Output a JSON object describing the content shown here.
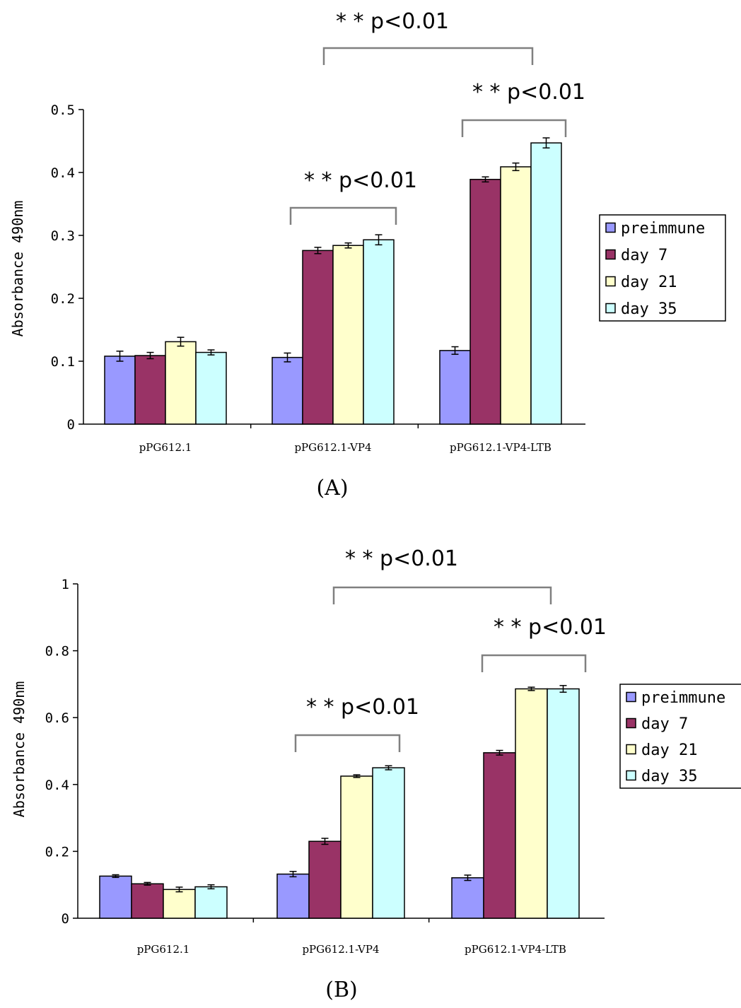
{
  "colors": {
    "series": [
      "#9999ff",
      "#993366",
      "#ffffcc",
      "#ccffff"
    ],
    "stroke": "#000000",
    "bracket": "#808080"
  },
  "chart_data": [
    {
      "type": "bar",
      "panel_label": "(A)",
      "categories": [
        "pPG612.1",
        "pPG612.1-VP4",
        "pPG612.1-VP4-LTB"
      ],
      "ylabel": "Absorbance 490nm",
      "ylim": [
        0,
        0.5
      ],
      "yticks": [
        0,
        0.1,
        0.2,
        0.3,
        0.4,
        0.5
      ],
      "ytick_labels": [
        "0",
        "0.1",
        "0.2",
        "0.3",
        "0.4",
        "0.5"
      ],
      "grid": false,
      "legend_position": "right",
      "series": [
        {
          "name": "preimmune",
          "values": [
            0.108,
            0.106,
            0.117
          ],
          "errors": [
            0.008,
            0.007,
            0.006
          ]
        },
        {
          "name": "day 7",
          "values": [
            0.109,
            0.276,
            0.389
          ],
          "errors": [
            0.005,
            0.005,
            0.004
          ]
        },
        {
          "name": "day 21",
          "values": [
            0.131,
            0.284,
            0.409
          ],
          "errors": [
            0.007,
            0.004,
            0.006
          ]
        },
        {
          "name": "day 35",
          "values": [
            0.114,
            0.293,
            0.447
          ],
          "errors": [
            0.004,
            0.008,
            0.008
          ]
        }
      ],
      "annotations": [
        {
          "text": "* * p<0.01",
          "from": "pPG612.1-VP4",
          "to": "pPG612.1-VP4-LTB"
        },
        {
          "text": "* * p<0.01",
          "from": "pPG612.1-VP4-LTB",
          "to": "pPG612.1-VP4-LTB"
        },
        {
          "text": "* * p<0.01",
          "from": "pPG612.1-VP4",
          "to": "pPG612.1-VP4"
        }
      ]
    },
    {
      "type": "bar",
      "panel_label": "(B)",
      "categories": [
        "pPG612.1",
        "pPG612.1-VP4",
        "pPG612.1-VP4-LTB"
      ],
      "ylabel": "Absorbance 490nm",
      "ylim": [
        0,
        1
      ],
      "yticks": [
        0,
        0.2,
        0.4,
        0.6,
        0.8,
        1
      ],
      "ytick_labels": [
        "0",
        "0.2",
        "0.4",
        "0.6",
        "0.8",
        "1"
      ],
      "grid": false,
      "legend_position": "right",
      "series": [
        {
          "name": "preimmune",
          "values": [
            0.126,
            0.132,
            0.121
          ],
          "errors": [
            0.004,
            0.008,
            0.008
          ]
        },
        {
          "name": "day 7",
          "values": [
            0.103,
            0.23,
            0.495
          ],
          "errors": [
            0.004,
            0.009,
            0.007
          ]
        },
        {
          "name": "day 21",
          "values": [
            0.086,
            0.425,
            0.686
          ],
          "errors": [
            0.007,
            0.004,
            0.005
          ]
        },
        {
          "name": "day 35",
          "values": [
            0.094,
            0.45,
            0.686
          ],
          "errors": [
            0.006,
            0.006,
            0.01
          ]
        }
      ],
      "annotations": [
        {
          "text": "* * p<0.01",
          "from": "pPG612.1-VP4",
          "to": "pPG612.1-VP4-LTB"
        },
        {
          "text": "* * p<0.01",
          "from": "pPG612.1-VP4-LTB",
          "to": "pPG612.1-VP4-LTB"
        },
        {
          "text": "* * p<0.01",
          "from": "pPG612.1-VP4",
          "to": "pPG612.1-VP4"
        }
      ]
    }
  ]
}
